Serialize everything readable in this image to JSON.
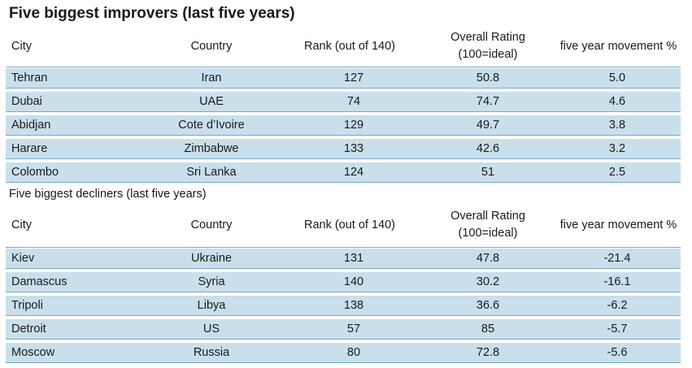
{
  "improvers": {
    "title": "Five biggest improvers (last five years)",
    "headers": [
      "City",
      "Country",
      "Rank (out of 140)",
      "Overall Rating\n(100=ideal)",
      "five year movement %"
    ],
    "rows": [
      [
        "Tehran",
        "Iran",
        "127",
        "50.8",
        "5.0"
      ],
      [
        "Dubai",
        "UAE",
        "74",
        "74.7",
        "4.6"
      ],
      [
        "Abidjan",
        "Cote d’Ivoire",
        "129",
        "49.7",
        "3.8"
      ],
      [
        "Harare",
        "Zimbabwe",
        "133",
        "42.6",
        "3.2"
      ],
      [
        "Colombo",
        "Sri Lanka",
        "124",
        "51",
        "2.5"
      ]
    ]
  },
  "decliners": {
    "title": "Five biggest decliners (last five years)",
    "headers": [
      "City",
      "Country",
      "Rank (out of 140)",
      "Overall Rating\n(100=ideal)",
      "five year movement %"
    ],
    "rows": [
      [
        "Kiev",
        "Ukraine",
        "131",
        "47.8",
        "-21.4"
      ],
      [
        "Damascus",
        "Syria",
        "140",
        "30.2",
        "-16.1"
      ],
      [
        "Tripoli",
        "Libya",
        "138",
        "36.6",
        "-6.2"
      ],
      [
        "Detroit",
        "US",
        "57",
        "85",
        "-5.7"
      ],
      [
        "Moscow",
        "Russia",
        "80",
        "72.8",
        "-5.6"
      ]
    ]
  },
  "colors": {
    "row_fill": "#c9dfec",
    "divider": "#7aa7c4"
  }
}
